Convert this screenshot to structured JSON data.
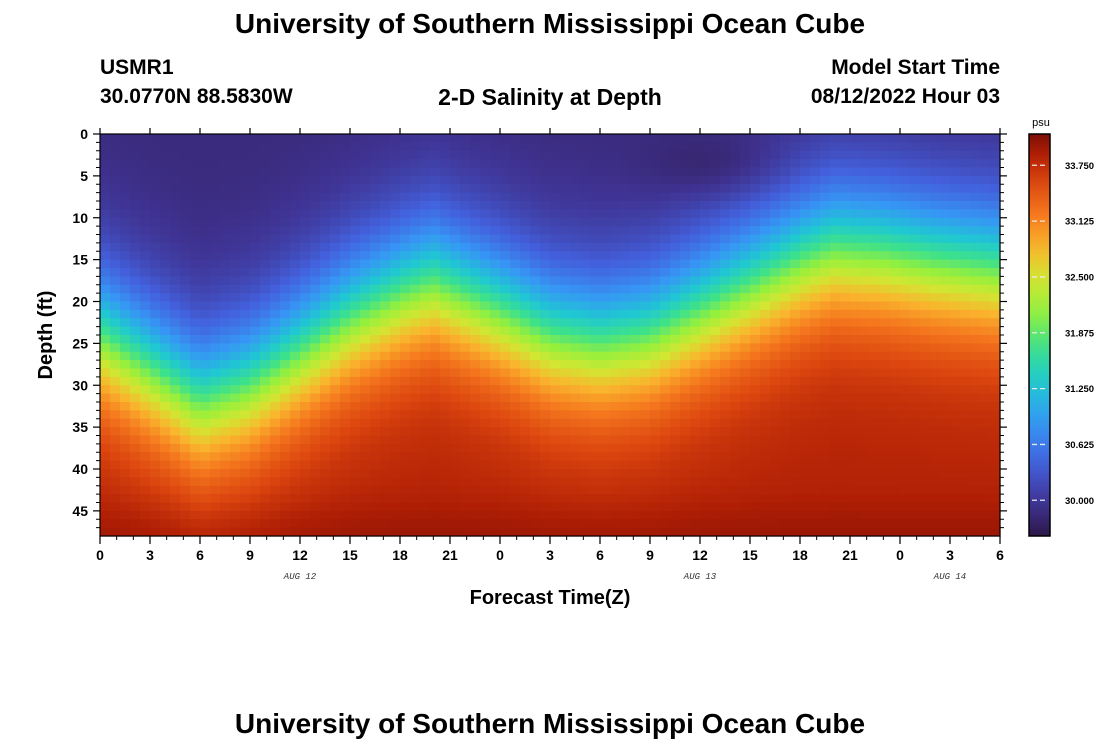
{
  "header": {
    "title": "University of Southern Mississippi Ocean Cube",
    "station_id": "USMR1",
    "station_location": "30.0770N  88.5830W",
    "plot_title": "2-D Salinity at Depth",
    "model_label": "Model Start Time",
    "model_time": "08/12/2022 Hour 03"
  },
  "footer": {
    "title": "University of Southern Mississippi Ocean Cube"
  },
  "chart_data": {
    "type": "heatmap",
    "title": "2-D Salinity at Depth",
    "xlabel": "Forecast Time(Z)",
    "ylabel": "Depth (ft)",
    "x_range_hours": [
      0,
      54
    ],
    "y_range_ft": [
      0,
      48
    ],
    "x_tick_labels": [
      "0",
      "3",
      "6",
      "9",
      "12",
      "15",
      "18",
      "21",
      "0",
      "3",
      "6",
      "9",
      "12",
      "15",
      "18",
      "21",
      "0",
      "3",
      "6"
    ],
    "y_tick_labels": [
      "0",
      "5",
      "10",
      "15",
      "20",
      "25",
      "30",
      "35",
      "40",
      "45"
    ],
    "y_tick_values": [
      0,
      5,
      10,
      15,
      20,
      25,
      30,
      35,
      40,
      45
    ],
    "date_labels": [
      {
        "text": "AUG 12",
        "hour": 12
      },
      {
        "text": "AUG 13",
        "hour": 36
      },
      {
        "text": "AUG 14",
        "hour": 51
      }
    ],
    "colorbar": {
      "units": "psu",
      "min": 29.6,
      "max": 34.1,
      "labels": [
        "33.750",
        "33.125",
        "32.500",
        "31.875",
        "31.250",
        "30.625",
        "30.000"
      ],
      "values": [
        33.75,
        33.125,
        32.5,
        31.875,
        31.25,
        30.625,
        30.0
      ]
    },
    "surface_salinity_psu": 29.8,
    "bottom_salinity_psu": 33.9,
    "halocline_depth_ft": [
      {
        "hour": 0,
        "depth": 24
      },
      {
        "hour": 3,
        "depth": 28
      },
      {
        "hour": 6,
        "depth": 32
      },
      {
        "hour": 9,
        "depth": 30
      },
      {
        "hour": 12,
        "depth": 26
      },
      {
        "hour": 15,
        "depth": 22
      },
      {
        "hour": 18,
        "depth": 19
      },
      {
        "hour": 20,
        "depth": 17.5
      },
      {
        "hour": 24,
        "depth": 21
      },
      {
        "hour": 27,
        "depth": 24
      },
      {
        "hour": 30,
        "depth": 25
      },
      {
        "hour": 33,
        "depth": 24
      },
      {
        "hour": 36,
        "depth": 21
      },
      {
        "hour": 39,
        "depth": 18
      },
      {
        "hour": 42,
        "depth": 15
      },
      {
        "hour": 44,
        "depth": 13.5
      },
      {
        "hour": 47,
        "depth": 14
      },
      {
        "hour": 50,
        "depth": 15
      },
      {
        "hour": 54,
        "depth": 16
      }
    ]
  }
}
